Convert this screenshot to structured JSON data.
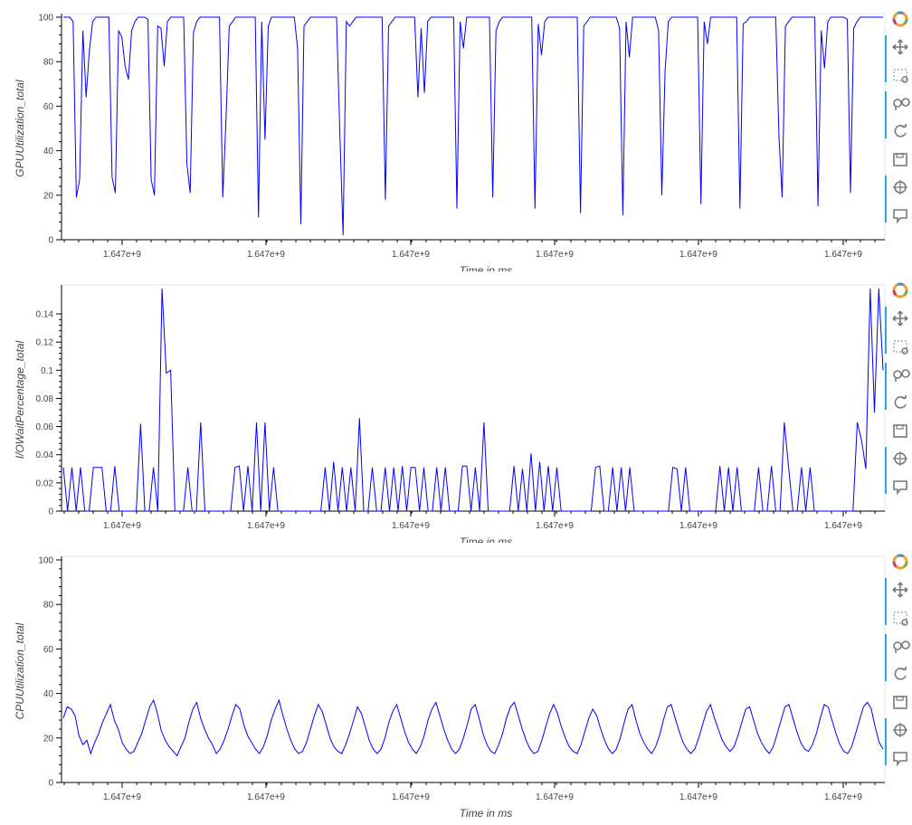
{
  "chart_data": [
    {
      "type": "line",
      "ylabel": "GPUUtilization_total",
      "xlabel": "Time in ms",
      "x_tick_labels": [
        "1.647e+9",
        "1.647e+9",
        "1.647e+9",
        "1.647e+9",
        "1.647e+9",
        "1.647e+9"
      ],
      "y_ticks": [
        0,
        20,
        40,
        60,
        80,
        100
      ],
      "y_tick_labels": [
        "0",
        "20",
        "40",
        "60",
        "80",
        "100"
      ],
      "ylim": [
        0,
        100
      ],
      "line_color": "#0000ff",
      "series": [
        {
          "values": [
            100,
            100,
            100,
            98,
            19,
            27,
            94,
            64,
            85,
            98,
            100,
            100,
            100,
            100,
            100,
            28,
            21,
            94,
            91,
            78,
            72,
            94,
            98,
            100,
            100,
            100,
            99,
            27,
            20,
            96,
            95,
            78,
            98,
            100,
            100,
            100,
            100,
            100,
            34,
            21,
            93,
            98,
            100,
            100,
            100,
            100,
            100,
            100,
            100,
            19,
            54,
            96,
            98,
            100,
            100,
            100,
            100,
            100,
            100,
            100,
            10,
            98,
            45,
            96,
            100,
            100,
            100,
            100,
            100,
            100,
            100,
            100,
            86,
            7,
            96,
            98,
            100,
            100,
            100,
            100,
            100,
            100,
            100,
            100,
            100,
            48,
            2,
            98,
            96,
            98,
            100,
            100,
            100,
            100,
            100,
            100,
            100,
            100,
            100,
            18,
            96,
            98,
            100,
            100,
            100,
            100,
            100,
            100,
            100,
            64,
            95,
            66,
            98,
            100,
            100,
            100,
            100,
            100,
            100,
            100,
            100,
            14,
            98,
            86,
            100,
            100,
            100,
            100,
            100,
            100,
            100,
            100,
            19,
            94,
            98,
            100,
            100,
            100,
            100,
            100,
            100,
            100,
            100,
            100,
            100,
            14,
            97,
            83,
            98,
            100,
            100,
            100,
            100,
            100,
            100,
            100,
            100,
            100,
            100,
            12,
            96,
            98,
            100,
            100,
            100,
            100,
            100,
            100,
            100,
            100,
            100,
            95,
            11,
            98,
            82,
            100,
            100,
            100,
            100,
            100,
            100,
            100,
            100,
            94,
            20,
            76,
            98,
            100,
            100,
            100,
            100,
            100,
            100,
            100,
            100,
            100,
            16,
            98,
            88,
            100,
            100,
            100,
            100,
            100,
            100,
            100,
            100,
            100,
            14,
            97,
            98,
            100,
            100,
            100,
            100,
            100,
            100,
            100,
            100,
            100,
            46,
            19,
            96,
            98,
            100,
            100,
            100,
            100,
            100,
            100,
            100,
            100,
            15,
            94,
            77,
            98,
            100,
            100,
            100,
            100,
            100,
            99,
            21,
            95,
            98,
            100,
            100,
            100,
            100,
            100,
            100,
            100,
            100
          ]
        }
      ]
    },
    {
      "type": "line",
      "ylabel": "I/OWaitPercentage_total",
      "xlabel": "Time in ms",
      "x_tick_labels": [
        "1.647e+9",
        "1.647e+9",
        "1.647e+9",
        "1.647e+9",
        "1.647e+9",
        "1.647e+9"
      ],
      "y_ticks": [
        0,
        0.02,
        0.04,
        0.06,
        0.08,
        0.1,
        0.12,
        0.14
      ],
      "y_tick_labels": [
        "0",
        "0.02",
        "0.04",
        "0.06",
        "0.08",
        "0.1",
        "0.12",
        "0.14"
      ],
      "ylim": [
        0,
        0.158
      ],
      "line_color": "#0000ff",
      "series": [
        {
          "values": [
            0.031,
            0,
            0.031,
            0,
            0.031,
            0,
            0,
            0.031,
            0.031,
            0.031,
            0,
            0,
            0.032,
            0,
            0,
            0,
            0,
            0,
            0.062,
            0,
            0,
            0.031,
            0,
            0.158,
            0.098,
            0.1,
            0,
            0,
            0,
            0.031,
            0,
            0,
            0.063,
            0,
            0,
            0,
            0,
            0,
            0,
            0,
            0.031,
            0.032,
            0,
            0.032,
            0,
            0.063,
            0,
            0.063,
            0,
            0.031,
            0,
            0,
            0,
            0,
            0,
            0,
            0,
            0,
            0,
            0,
            0,
            0.031,
            0,
            0.035,
            0,
            0.031,
            0,
            0.031,
            0,
            0.066,
            0,
            0,
            0.031,
            0,
            0,
            0.031,
            0,
            0.031,
            0,
            0.032,
            0,
            0.031,
            0.031,
            0,
            0.031,
            0,
            0,
            0.031,
            0,
            0.031,
            0,
            0,
            0,
            0.032,
            0.032,
            0,
            0.031,
            0,
            0.063,
            0,
            0,
            0,
            0,
            0,
            0,
            0.032,
            0,
            0.03,
            0,
            0.041,
            0,
            0.035,
            0,
            0.032,
            0,
            0.031,
            0,
            0,
            0,
            0,
            0,
            0,
            0,
            0,
            0.031,
            0.032,
            0,
            0,
            0.031,
            0,
            0.031,
            0,
            0.031,
            0,
            0,
            0,
            0,
            0,
            0,
            0,
            0,
            0,
            0.031,
            0.03,
            0,
            0.031,
            0,
            0,
            0,
            0,
            0,
            0,
            0,
            0.032,
            0,
            0.031,
            0,
            0.031,
            0,
            0,
            0,
            0,
            0.031,
            0,
            0,
            0.032,
            0,
            0,
            0.063,
            0.031,
            0,
            0,
            0.031,
            0,
            0.031,
            0,
            0,
            0,
            0,
            0,
            0,
            0,
            0,
            0,
            0,
            0.063,
            0.05,
            0.03,
            0.158,
            0.07,
            0.158,
            0.1
          ]
        }
      ]
    },
    {
      "type": "line",
      "ylabel": "CPUUtilization_total",
      "xlabel": "Time in ms",
      "x_tick_labels": [
        "1.647e+9",
        "1.647e+9",
        "1.647e+9",
        "1.647e+9",
        "1.647e+9",
        "1.647e+9"
      ],
      "y_ticks": [
        0,
        20,
        40,
        60,
        80,
        100
      ],
      "y_tick_labels": [
        "0",
        "20",
        "40",
        "60",
        "80",
        "100"
      ],
      "ylim": [
        0,
        100
      ],
      "line_color": "#0000ff",
      "series": [
        {
          "values": [
            29,
            34,
            33,
            30,
            21,
            17,
            19,
            13,
            18,
            22,
            27,
            31,
            35,
            28,
            24,
            18,
            15,
            13,
            14,
            18,
            22,
            28,
            34,
            37,
            31,
            23,
            19,
            16,
            14,
            12,
            16,
            20,
            27,
            33,
            36,
            29,
            24,
            20,
            17,
            13,
            15,
            19,
            24,
            30,
            35,
            33,
            26,
            21,
            18,
            15,
            13,
            16,
            21,
            28,
            33,
            37,
            30,
            24,
            19,
            15,
            13,
            14,
            18,
            24,
            30,
            35,
            32,
            26,
            20,
            16,
            14,
            13,
            17,
            22,
            28,
            34,
            31,
            25,
            19,
            15,
            13,
            15,
            20,
            27,
            32,
            35,
            29,
            23,
            18,
            15,
            13,
            16,
            21,
            28,
            33,
            36,
            30,
            24,
            19,
            15,
            13,
            15,
            20,
            26,
            33,
            35,
            29,
            22,
            17,
            14,
            13,
            17,
            22,
            29,
            34,
            36,
            30,
            24,
            19,
            15,
            13,
            14,
            19,
            25,
            31,
            35,
            31,
            25,
            20,
            16,
            14,
            13,
            17,
            23,
            29,
            33,
            30,
            24,
            19,
            15,
            13,
            15,
            20,
            27,
            33,
            35,
            28,
            22,
            18,
            15,
            13,
            16,
            21,
            28,
            34,
            35,
            29,
            23,
            18,
            15,
            13,
            15,
            20,
            26,
            32,
            35,
            29,
            24,
            19,
            16,
            14,
            16,
            21,
            27,
            33,
            34,
            28,
            22,
            18,
            15,
            13,
            16,
            22,
            28,
            34,
            35,
            29,
            23,
            18,
            15,
            14,
            17,
            22,
            29,
            35,
            34,
            28,
            22,
            17,
            14,
            13,
            16,
            22,
            28,
            34,
            36,
            33,
            25,
            18,
            15
          ]
        }
      ]
    }
  ],
  "toolbar": {
    "tools": [
      "bokeh-logo-icon",
      "pan-icon",
      "box-zoom-icon",
      "wheel-zoom-icon",
      "reset-icon",
      "save-icon",
      "crosshair-icon",
      "hover-icon"
    ]
  }
}
